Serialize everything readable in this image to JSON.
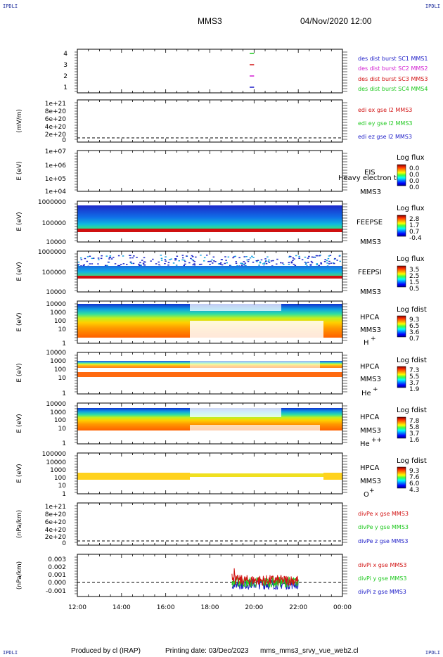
{
  "header": {
    "corner_left_top": "IPDLI",
    "corner_right_top": "IPDLI",
    "corner_left_bottom": "IPDLI",
    "corner_right_bottom": "IPDLI",
    "title": "MMS3",
    "datetime": "04/Nov/2020 12:00"
  },
  "footer": {
    "produced_by": "Produced by cl (IRAP)",
    "printing_date": "Printing date: 03/Dec/2023",
    "file": "mms_mms3_srvy_vue_web2.cl"
  },
  "x_axis": {
    "ticks": [
      "12:00",
      "14:00",
      "16:00",
      "18:00",
      "20:00",
      "22:00",
      "00:00"
    ],
    "range_hours": [
      12,
      24
    ]
  },
  "colors": {
    "mms1": "#1c1cc8",
    "mms2": "#d21ed2",
    "mms3": "#d21414",
    "mms4": "#1ec81e",
    "x": "#d21414",
    "y": "#1ec81e",
    "z": "#1c1cc8"
  },
  "chart_data": [
    {
      "type": "scatter",
      "id": "burst",
      "yticks": [
        "4",
        "3",
        "2",
        "1"
      ],
      "legend": [
        "des dist burst SC1 MMS1",
        "des dist burst SC2 MMS2",
        "des dist burst SC3 MMS3",
        "des dist burst SC4 MMS4"
      ],
      "segments": [
        {
          "level": 4,
          "x": [
            19.8,
            20.0
          ]
        },
        {
          "level": 3,
          "x": [
            19.8,
            20.0
          ]
        },
        {
          "level": 2,
          "x": [
            19.8,
            20.0
          ]
        },
        {
          "level": 1,
          "x": [
            19.8,
            20.0
          ]
        }
      ]
    },
    {
      "type": "line",
      "id": "edi",
      "ylabel": "(mV/m)",
      "yticks": [
        "1e+21",
        "8e+20",
        "6e+20",
        "4e+20",
        "2e+20",
        "0"
      ],
      "legend": [
        "edi ex gse l2 MMS3",
        "edi ey gse l2 MMS3",
        "edi ez gse l2 MMS3"
      ]
    },
    {
      "type": "heatmap",
      "id": "eis",
      "ylabel": "E (eV)",
      "yticks": [
        "1e+07",
        "1e+06",
        "1e+05",
        "1e+04"
      ],
      "side_labels": [
        "EIS",
        "MMS3"
      ],
      "overlay_text": "Heavy electron tc",
      "cb_title": "Log flux",
      "cb_values": [
        "0.0",
        "0.0",
        "0.0",
        "0.0"
      ]
    },
    {
      "type": "heatmap",
      "id": "feepse",
      "ylabel": "E (eV)",
      "yticks": [
        "1000000",
        "100000",
        "10000"
      ],
      "side_labels": [
        "FEEPSE",
        "MMS3"
      ],
      "cb_title": "Log flux",
      "cb_values": [
        "2.8",
        "1.7",
        "0.7",
        "-0.4"
      ]
    },
    {
      "type": "heatmap",
      "id": "feepsi",
      "ylabel": "E (eV)",
      "yticks": [
        "1000000",
        "100000",
        "10000"
      ],
      "side_labels": [
        "FEEPSI",
        "MMS3"
      ],
      "cb_title": "Log flux",
      "cb_values": [
        "3.5",
        "2.5",
        "1.5",
        "0.5"
      ]
    },
    {
      "type": "heatmap",
      "id": "hpca-h",
      "ylabel": "E (eV)",
      "yticks": [
        "10000",
        "1000",
        "100",
        "10",
        "1"
      ],
      "side_labels": [
        "HPCA",
        "MMS3",
        "H",
        "+"
      ],
      "cb_title": "Log fdist",
      "cb_values": [
        "9.3",
        "6.5",
        "3.6",
        "0.7"
      ]
    },
    {
      "type": "heatmap",
      "id": "hpca-he",
      "ylabel": "E (eV)",
      "yticks": [
        "10000",
        "1000",
        "100",
        "10",
        "1"
      ],
      "side_labels": [
        "HPCA",
        "MMS3",
        "He",
        "+"
      ],
      "cb_title": "Log fdist",
      "cb_values": [
        "7.3",
        "5.5",
        "3.7",
        "1.9"
      ]
    },
    {
      "type": "heatmap",
      "id": "hpca-hepp",
      "ylabel": "E (eV)",
      "yticks": [
        "10000",
        "1000",
        "100",
        "10",
        "1"
      ],
      "side_labels": [
        "HPCA",
        "MMS3",
        "He",
        "++"
      ],
      "cb_title": "Log fdist",
      "cb_values": [
        "7.8",
        "5.8",
        "3.7",
        "1.6"
      ]
    },
    {
      "type": "heatmap",
      "id": "hpca-o",
      "ylabel": "E (eV)",
      "yticks": [
        "100000",
        "10000",
        "1000",
        "100",
        "10",
        "1"
      ],
      "side_labels": [
        "HPCA",
        "MMS3",
        "O",
        "+"
      ],
      "cb_title": "Log fdist",
      "cb_values": [
        "9.3",
        "7.6",
        "6.0",
        "4.3"
      ]
    },
    {
      "type": "line",
      "id": "divpe",
      "ylabel": "(nPa/km)",
      "yticks": [
        "1e+21",
        "8e+20",
        "6e+20",
        "4e+20",
        "2e+20",
        "0"
      ],
      "legend": [
        "divPe x gse MMS3",
        "divPe y gse MMS3",
        "divPe z gse MMS3"
      ]
    },
    {
      "type": "line",
      "id": "divpi",
      "ylabel": "(nPa/km)",
      "yticks": [
        "0.003",
        "0.002",
        "0.001",
        "0.000",
        "-0.001"
      ],
      "ylim": [
        -0.0015,
        0.0032
      ],
      "legend": [
        "divPi x gse MMS3",
        "divPi y gse MMS3",
        "divPi z gse MMS3"
      ],
      "data_span_hours": [
        19.0,
        22.0
      ],
      "series_level": {
        "x": 0.0003,
        "y": 0.0001,
        "z": -0.0001
      }
    }
  ]
}
